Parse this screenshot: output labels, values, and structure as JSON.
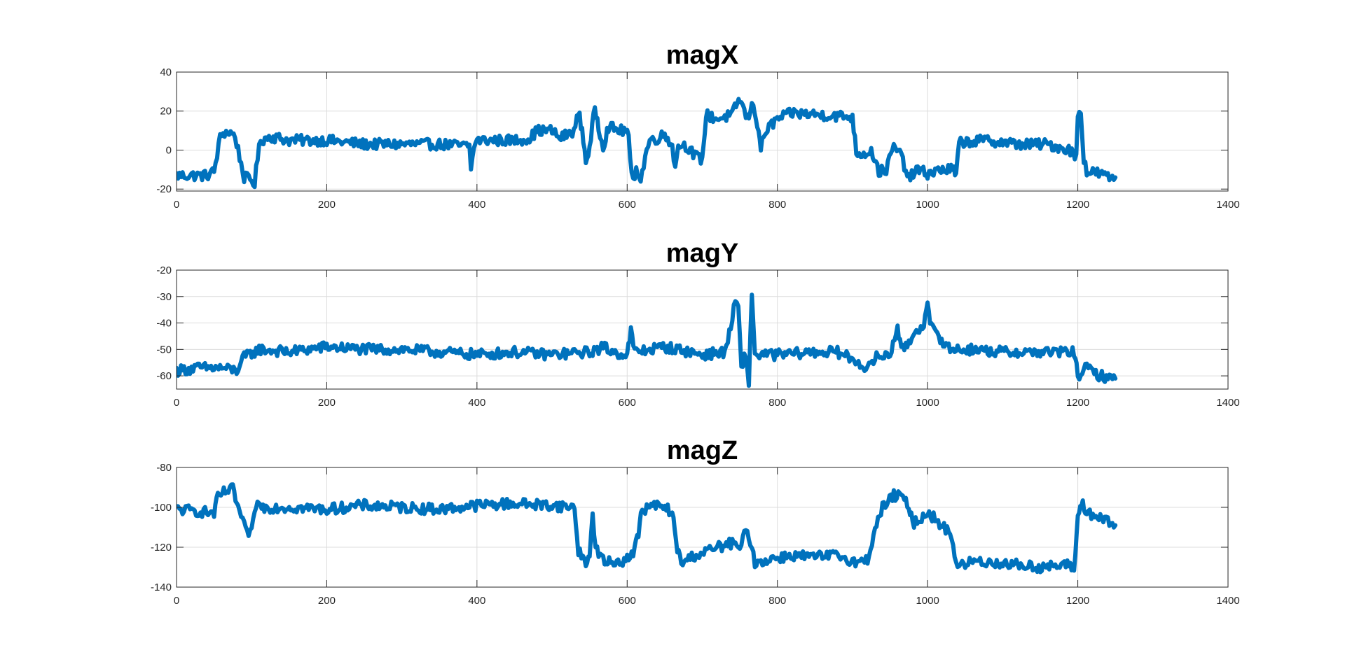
{
  "figure": {
    "background": "#ffffff"
  },
  "chart_data": [
    {
      "type": "line",
      "title": "magX",
      "xlim": [
        0,
        1400
      ],
      "ylim": [
        -21,
        40
      ],
      "xticks": [
        0,
        200,
        400,
        600,
        800,
        1000,
        1200,
        1400
      ],
      "yticks": [
        -20,
        0,
        20,
        40
      ],
      "grid": true,
      "series": [
        {
          "color": "#0072BD",
          "keypoints": [
            [
              0,
              -13
            ],
            [
              40,
              -13
            ],
            [
              50,
              -11
            ],
            [
              58,
              6
            ],
            [
              62,
              9
            ],
            [
              72,
              9
            ],
            [
              78,
              7
            ],
            [
              90,
              -14
            ],
            [
              98,
              -15
            ],
            [
              104,
              -17
            ],
            [
              108,
              -4
            ],
            [
              112,
              5
            ],
            [
              125,
              7
            ],
            [
              150,
              5
            ],
            [
              200,
              5
            ],
            [
              250,
              3
            ],
            [
              300,
              3
            ],
            [
              350,
              3
            ],
            [
              390,
              2
            ],
            [
              392,
              -9
            ],
            [
              398,
              5
            ],
            [
              450,
              5
            ],
            [
              470,
              6
            ],
            [
              480,
              10
            ],
            [
              500,
              10
            ],
            [
              510,
              6
            ],
            [
              525,
              9
            ],
            [
              531,
              11
            ],
            [
              535,
              20
            ],
            [
              540,
              10
            ],
            [
              545,
              -5
            ],
            [
              550,
              0
            ],
            [
              557,
              22
            ],
            [
              562,
              12
            ],
            [
              568,
              2
            ],
            [
              575,
              12
            ],
            [
              590,
              10
            ],
            [
              600,
              10
            ],
            [
              602,
              5
            ],
            [
              604,
              -5
            ],
            [
              606,
              -12
            ],
            [
              608,
              -17
            ],
            [
              612,
              -8
            ],
            [
              618,
              -16
            ],
            [
              624,
              -3
            ],
            [
              630,
              5
            ],
            [
              640,
              6
            ],
            [
              650,
              8
            ],
            [
              660,
              3
            ],
            [
              664,
              -10
            ],
            [
              668,
              3
            ],
            [
              680,
              2
            ],
            [
              690,
              -3
            ],
            [
              700,
              -5
            ],
            [
              705,
              18
            ],
            [
              720,
              16
            ],
            [
              740,
              18
            ],
            [
              745,
              23
            ],
            [
              750,
              26
            ],
            [
              760,
              16
            ],
            [
              768,
              24
            ],
            [
              775,
              10
            ],
            [
              778,
              1
            ],
            [
              785,
              10
            ],
            [
              800,
              16
            ],
            [
              820,
              19
            ],
            [
              860,
              18
            ],
            [
              900,
              17
            ],
            [
              905,
              -1
            ],
            [
              915,
              -2
            ],
            [
              925,
              0
            ],
            [
              935,
              -11
            ],
            [
              945,
              -10
            ],
            [
              955,
              2
            ],
            [
              965,
              -3
            ],
            [
              975,
              -15
            ],
            [
              985,
              -10
            ],
            [
              1000,
              -12
            ],
            [
              1020,
              -10
            ],
            [
              1035,
              -10
            ],
            [
              1038,
              -14
            ],
            [
              1042,
              4
            ],
            [
              1080,
              5
            ],
            [
              1120,
              3
            ],
            [
              1160,
              3
            ],
            [
              1190,
              0
            ],
            [
              1198,
              -4
            ],
            [
              1200,
              18
            ],
            [
              1204,
              20
            ],
            [
              1208,
              -4
            ],
            [
              1212,
              -11
            ],
            [
              1230,
              -12
            ],
            [
              1240,
              -14
            ],
            [
              1250,
              -14
            ]
          ]
        }
      ]
    },
    {
      "type": "line",
      "title": "magY",
      "xlim": [
        0,
        1400
      ],
      "ylim": [
        -65,
        -20
      ],
      "xticks": [
        0,
        200,
        400,
        600,
        800,
        1000,
        1200,
        1400
      ],
      "yticks": [
        -20,
        -30,
        -40,
        -50,
        -60
      ],
      "grid": true,
      "series": [
        {
          "color": "#0072BD",
          "keypoints": [
            [
              0,
              -58
            ],
            [
              30,
              -57
            ],
            [
              60,
              -57
            ],
            [
              80,
              -58
            ],
            [
              90,
              -53
            ],
            [
              110,
              -50
            ],
            [
              150,
              -51
            ],
            [
              200,
              -49
            ],
            [
              250,
              -50
            ],
            [
              300,
              -50
            ],
            [
              350,
              -51
            ],
            [
              400,
              -52
            ],
            [
              450,
              -51
            ],
            [
              500,
              -52
            ],
            [
              550,
              -51
            ],
            [
              570,
              -49
            ],
            [
              580,
              -51
            ],
            [
              600,
              -52
            ],
            [
              605,
              -43
            ],
            [
              610,
              -51
            ],
            [
              650,
              -49
            ],
            [
              700,
              -52
            ],
            [
              730,
              -51
            ],
            [
              738,
              -42
            ],
            [
              742,
              -34
            ],
            [
              748,
              -33
            ],
            [
              752,
              -58
            ],
            [
              758,
              -51
            ],
            [
              762,
              -64
            ],
            [
              766,
              -28
            ],
            [
              770,
              -52
            ],
            [
              800,
              -52
            ],
            [
              850,
              -51
            ],
            [
              880,
              -51
            ],
            [
              910,
              -55
            ],
            [
              920,
              -58
            ],
            [
              930,
              -53
            ],
            [
              950,
              -52
            ],
            [
              960,
              -41
            ],
            [
              965,
              -51
            ],
            [
              985,
              -43
            ],
            [
              995,
              -40
            ],
            [
              1000,
              -34
            ],
            [
              1005,
              -42
            ],
            [
              1015,
              -45
            ],
            [
              1030,
              -50
            ],
            [
              1060,
              -50
            ],
            [
              1100,
              -51
            ],
            [
              1150,
              -51
            ],
            [
              1195,
              -51
            ],
            [
              1200,
              -60
            ],
            [
              1210,
              -57
            ],
            [
              1230,
              -60
            ],
            [
              1250,
              -61
            ]
          ]
        }
      ]
    },
    {
      "type": "line",
      "title": "magZ",
      "xlim": [
        0,
        1400
      ],
      "ylim": [
        -140,
        -80
      ],
      "xticks": [
        0,
        200,
        400,
        600,
        800,
        1000,
        1200,
        1400
      ],
      "yticks": [
        -80,
        -100,
        -120,
        -140
      ],
      "grid": true,
      "series": [
        {
          "color": "#0072BD",
          "keypoints": [
            [
              0,
              -101
            ],
            [
              30,
              -102
            ],
            [
              50,
              -103
            ],
            [
              55,
              -95
            ],
            [
              65,
              -92
            ],
            [
              75,
              -91
            ],
            [
              82,
              -100
            ],
            [
              92,
              -112
            ],
            [
              100,
              -113
            ],
            [
              106,
              -98
            ],
            [
              115,
              -100
            ],
            [
              150,
              -100
            ],
            [
              200,
              -101
            ],
            [
              250,
              -99
            ],
            [
              300,
              -100
            ],
            [
              350,
              -101
            ],
            [
              400,
              -99
            ],
            [
              450,
              -98
            ],
            [
              500,
              -99
            ],
            [
              530,
              -100
            ],
            [
              535,
              -122
            ],
            [
              545,
              -127
            ],
            [
              550,
              -126
            ],
            [
              554,
              -103
            ],
            [
              558,
              -120
            ],
            [
              570,
              -128
            ],
            [
              590,
              -127
            ],
            [
              600,
              -126
            ],
            [
              610,
              -121
            ],
            [
              615,
              -113
            ],
            [
              620,
              -101
            ],
            [
              640,
              -99
            ],
            [
              660,
              -102
            ],
            [
              665,
              -118
            ],
            [
              672,
              -128
            ],
            [
              690,
              -124
            ],
            [
              700,
              -123
            ],
            [
              720,
              -120
            ],
            [
              740,
              -118
            ],
            [
              750,
              -121
            ],
            [
              760,
              -110
            ],
            [
              770,
              -128
            ],
            [
              790,
              -126
            ],
            [
              820,
              -124
            ],
            [
              850,
              -125
            ],
            [
              880,
              -124
            ],
            [
              910,
              -128
            ],
            [
              920,
              -126
            ],
            [
              930,
              -111
            ],
            [
              940,
              -100
            ],
            [
              955,
              -94
            ],
            [
              965,
              -95
            ],
            [
              975,
              -99
            ],
            [
              980,
              -108
            ],
            [
              990,
              -106
            ],
            [
              1000,
              -102
            ],
            [
              1010,
              -106
            ],
            [
              1020,
              -110
            ],
            [
              1030,
              -112
            ],
            [
              1040,
              -130
            ],
            [
              1060,
              -127
            ],
            [
              1100,
              -128
            ],
            [
              1150,
              -130
            ],
            [
              1190,
              -129
            ],
            [
              1195,
              -131
            ],
            [
              1200,
              -105
            ],
            [
              1205,
              -97
            ],
            [
              1210,
              -102
            ],
            [
              1230,
              -106
            ],
            [
              1250,
              -109
            ]
          ]
        }
      ]
    }
  ]
}
